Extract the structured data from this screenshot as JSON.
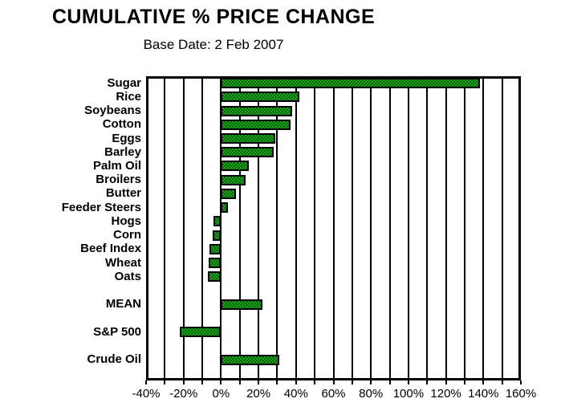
{
  "header": {
    "title": "CUMULATIVE % PRICE CHANGE",
    "subtitle": "Base Date: 2 Feb 2007"
  },
  "chart_data": {
    "type": "bar",
    "orientation": "horizontal",
    "title": "CUMULATIVE % PRICE CHANGE",
    "subtitle": "Base Date: 2 Feb 2007",
    "unit": "%",
    "categories": [
      "Sugar",
      "Rice",
      "Soybeans",
      "Cotton",
      "Eggs",
      "Barley",
      "Palm Oil",
      "Broilers",
      "Butter",
      "Feeder Steers",
      "Hogs",
      "Corn",
      "Beef Index",
      "Wheat",
      "Oats",
      "MEAN",
      "S&P 500",
      "Crude Oil"
    ],
    "values": [
      138,
      42,
      38,
      37,
      29,
      28,
      15,
      13,
      8,
      3.5,
      -4,
      -4.5,
      -6,
      -6.5,
      -7,
      22,
      -22,
      31
    ],
    "separated_rows": [
      "MEAN",
      "S&P 500",
      "Crude Oil"
    ],
    "xlim": [
      -40,
      160
    ],
    "x_tick_labels": [
      "-40%",
      "-20%",
      "0%",
      "20%",
      "40%",
      "60%",
      "80%",
      "100%",
      "120%",
      "140%",
      "160%"
    ],
    "x_tick_step": 20,
    "gridline_step": 10,
    "grid": "vertical-on",
    "legend": "none",
    "bar_color": "#1CA11C",
    "bar_pattern_color": "#076607",
    "bar_border_color": "#000000",
    "axis_color": "#000000",
    "background_color": "#FFFFFF"
  }
}
